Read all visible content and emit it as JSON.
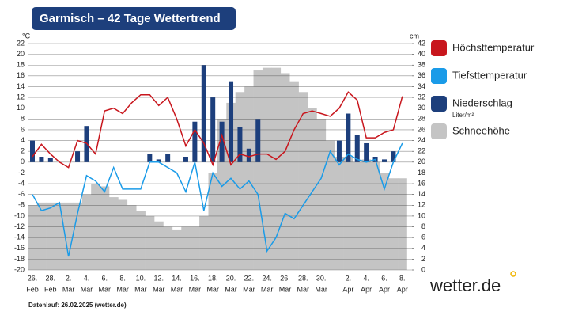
{
  "chart_data": {
    "type": "combo",
    "title": "Garmisch – 42 Tage Wettertrend",
    "y_unit": "°C",
    "y2_unit": "cm",
    "footnote": "Datenlauf: 26.02.2025 (wetter.de)",
    "logo": "wetter.de",
    "precip_unit": "Liter/m²",
    "categories": [
      "26.",
      null,
      "28.",
      null,
      "2.",
      null,
      "4.",
      null,
      "6.",
      null,
      "8.",
      null,
      "10.",
      null,
      "12.",
      null,
      "14.",
      null,
      "16.",
      null,
      "18.",
      null,
      "20.",
      null,
      "22.",
      null,
      "24.",
      null,
      "26.",
      null,
      "28.",
      null,
      "30.",
      null,
      null,
      "2.",
      null,
      "4.",
      null,
      "6.",
      null,
      "8."
    ],
    "category_months": [
      "Feb",
      null,
      "Feb",
      null,
      "Mär",
      null,
      "Mär",
      null,
      "Mär",
      null,
      "Mär",
      null,
      "Mär",
      null,
      "Mär",
      null,
      "Mär",
      null,
      "Mär",
      null,
      "Mär",
      null,
      "Mär",
      null,
      "Mär",
      null,
      "Mär",
      null,
      "Mär",
      null,
      "Mär",
      null,
      "Mär",
      null,
      null,
      "Apr",
      null,
      "Apr",
      null,
      "Apr",
      null,
      "Apr"
    ],
    "ylim": [
      -20,
      22
    ],
    "yticks": [
      -20,
      -18,
      -16,
      -14,
      -12,
      -10,
      -8,
      -6,
      -4,
      -2,
      0,
      2,
      4,
      6,
      8,
      10,
      12,
      14,
      16,
      18,
      20,
      22
    ],
    "y2lim": [
      0,
      42
    ],
    "y2ticks": [
      0,
      2,
      4,
      6,
      8,
      10,
      12,
      14,
      16,
      18,
      20,
      22,
      24,
      26,
      28,
      30,
      32,
      34,
      36,
      38,
      40,
      42
    ],
    "grid": true,
    "series": [
      {
        "name": "Höchsttemperatur",
        "kind": "line",
        "color": "#c8161d",
        "values": [
          1,
          3.3,
          1.5,
          0,
          -1,
          4,
          3.5,
          1.5,
          9.5,
          10,
          9,
          11,
          12.5,
          12.5,
          10.5,
          12,
          8,
          3,
          6,
          3.5,
          -0.5,
          5,
          -0.5,
          1.5,
          1,
          1.5,
          1.5,
          0.5,
          2,
          6,
          9,
          9.5,
          9,
          8.5,
          10,
          13,
          11.5,
          4.5,
          4.5,
          5.5,
          6,
          12.2
        ]
      },
      {
        "name": "Tiefsttemperatur",
        "kind": "line",
        "color": "#1a9be8",
        "values": [
          -6,
          -9,
          -8.5,
          -7.5,
          -17.5,
          -9.5,
          -2.5,
          -3.5,
          -5.5,
          -1,
          -5,
          -5,
          -5,
          0,
          0,
          -1,
          -2,
          -5.5,
          0,
          -9,
          -2,
          -4.5,
          -3,
          -5,
          -3.5,
          -6,
          -16.5,
          -14,
          -9.5,
          -10.5,
          -8,
          -5.5,
          -3,
          2,
          -0.5,
          1.5,
          0.5,
          0,
          0.5,
          -5,
          0,
          3.5
        ]
      },
      {
        "name": "Niederschlag",
        "kind": "bar",
        "color": "#1d3f7c",
        "values": [
          4,
          1,
          0.8,
          0,
          0,
          2,
          6.7,
          0,
          0,
          0,
          0,
          0,
          0,
          1.5,
          0.5,
          1.5,
          0,
          1,
          7.5,
          18,
          12,
          7.5,
          15,
          6.5,
          2.5,
          8,
          0,
          0,
          0,
          0,
          0,
          0,
          0,
          0,
          4,
          9,
          5,
          3.5,
          1,
          0.5,
          2,
          0
        ]
      },
      {
        "name": "Schneehöhe",
        "kind": "area-bar",
        "axis": "y2",
        "color": "#c4c4c4",
        "values": [
          12,
          12.5,
          12.5,
          12.5,
          12.5,
          12.5,
          14,
          16,
          15.5,
          13.5,
          13,
          12,
          11,
          10,
          9,
          8,
          7.5,
          8,
          8,
          10,
          18,
          28,
          31,
          33,
          34,
          37,
          37.5,
          37.5,
          36.5,
          35,
          33,
          30,
          28,
          24,
          21,
          21,
          20,
          20.5,
          20,
          18,
          17,
          17
        ]
      }
    ]
  }
}
